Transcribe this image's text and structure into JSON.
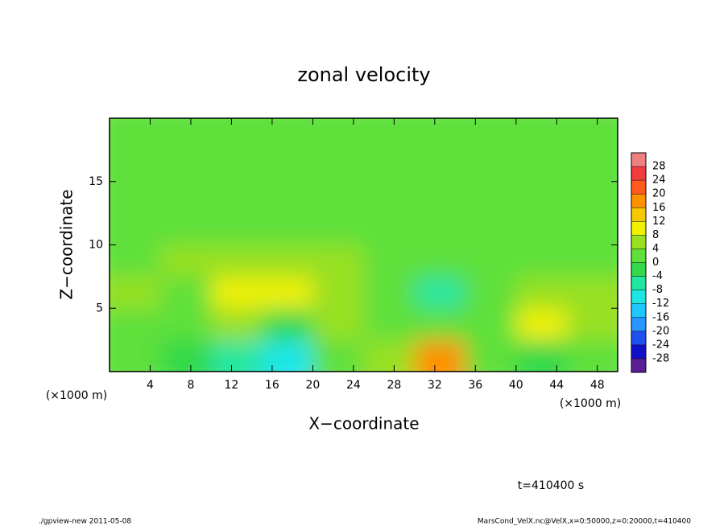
{
  "chart_data": {
    "type": "heatmap",
    "title": "zonal velocity",
    "xlabel": "X−coordinate",
    "ylabel": "Z−coordinate",
    "xunit": "(×1000 m)",
    "xunit2": "(×1000 m)",
    "time_label": "t=410400 s",
    "footer_left": "./gpview-new  2011-05-08",
    "footer_right": "MarsCond_VelX.nc@VelX,x=0:50000,z=0:20000,t=410400",
    "xlim": [
      0,
      50
    ],
    "ylim": [
      0,
      20
    ],
    "xticks": [
      4,
      8,
      12,
      16,
      20,
      24,
      28,
      32,
      36,
      40,
      44,
      48
    ],
    "yticks": [
      5,
      10,
      15
    ],
    "x": [
      2.5,
      7.5,
      12.5,
      17.5,
      22.5,
      27.5,
      32.5,
      37.5,
      42.5,
      47.5
    ],
    "y": [
      1.25,
      3.75,
      6.25,
      8.75,
      11.25,
      13.75,
      16.25,
      18.75
    ],
    "z": [
      [
        0,
        -4,
        -6,
        -10,
        2,
        4,
        16,
        0,
        -2,
        2
      ],
      [
        2,
        0,
        4,
        -2,
        4,
        2,
        0,
        2,
        10,
        4
      ],
      [
        6,
        2,
        8,
        10,
        4,
        0,
        -8,
        2,
        6,
        4
      ],
      [
        2,
        4,
        6,
        6,
        4,
        2,
        0,
        2,
        2,
        2
      ],
      [
        2,
        2,
        2,
        2,
        2,
        2,
        2,
        2,
        2,
        2
      ],
      [
        2,
        2,
        2,
        2,
        2,
        2,
        2,
        2,
        2,
        2
      ],
      [
        2,
        2,
        2,
        2,
        2,
        2,
        2,
        2,
        2,
        2
      ],
      [
        2,
        2,
        2,
        2,
        2,
        2,
        2,
        2,
        2,
        2
      ]
    ],
    "clim": [
      -32,
      32
    ],
    "cticks": [
      28,
      24,
      20,
      16,
      12,
      8,
      4,
      0,
      -4,
      -8,
      -12,
      -16,
      -20,
      -24,
      -28
    ],
    "colors": [
      "#5a1e96",
      "#1010c8",
      "#1e50f0",
      "#2896ff",
      "#1ec8ff",
      "#1ee6e6",
      "#20e6a0",
      "#33d94a",
      "#5fe03a",
      "#98e020",
      "#f0f000",
      "#f5c800",
      "#ff9000",
      "#ff5a1e",
      "#f03c3c",
      "#f08080"
    ]
  }
}
